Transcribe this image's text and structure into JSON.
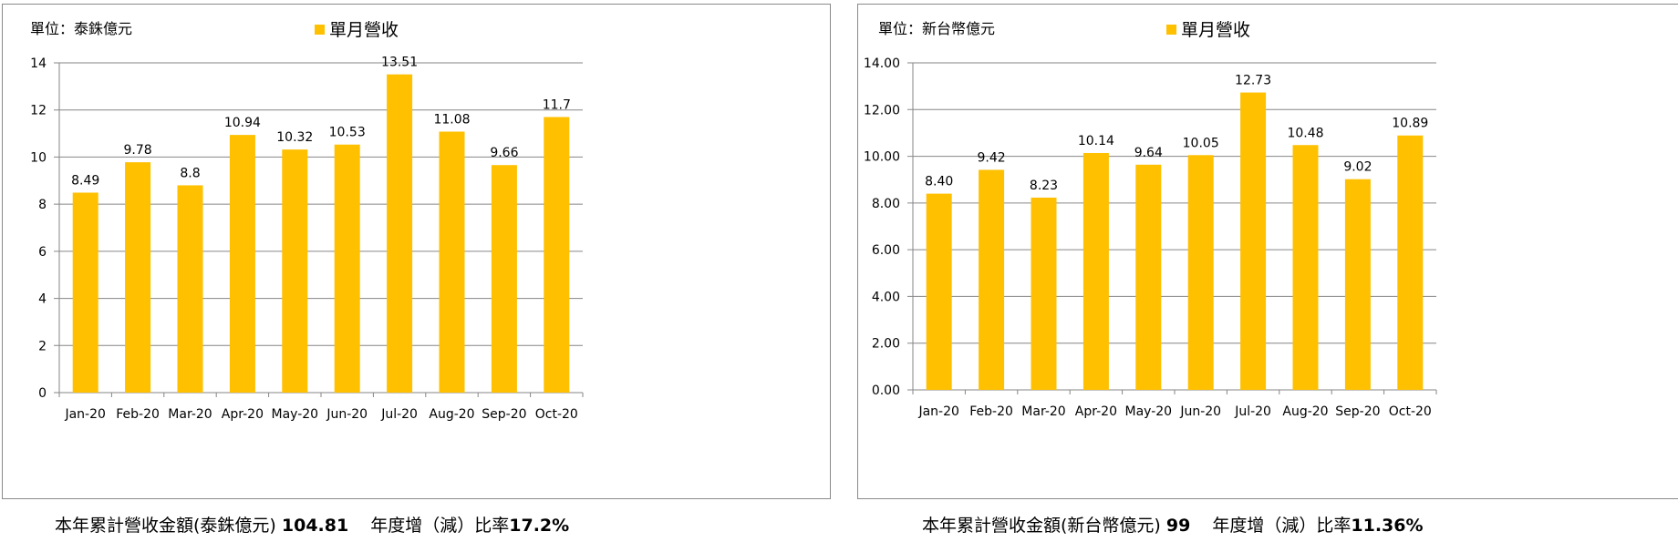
{
  "colors": {
    "bar": "#FFC000",
    "grid": "#868686",
    "frame": "#8a8a8a"
  },
  "chart_data": [
    {
      "type": "bar",
      "unit_label": "單位：泰銖億元",
      "legend": "單月營收",
      "legend_position": "top-center",
      "grid": true,
      "categories": [
        "Jan-20",
        "Feb-20",
        "Mar-20",
        "Apr-20",
        "May-20",
        "Jun-20",
        "Jul-20",
        "Aug-20",
        "Sep-20",
        "Oct-20"
      ],
      "values": [
        8.49,
        9.78,
        8.8,
        10.94,
        10.32,
        10.53,
        13.51,
        11.08,
        9.66,
        11.7
      ],
      "data_labels": [
        "8.49",
        "9.78",
        "8.8",
        "10.94",
        "10.32",
        "10.53",
        "13.51",
        "11.08",
        "9.66",
        "11.7"
      ],
      "ylim": [
        0,
        14
      ],
      "yticks": [
        0,
        2,
        4,
        6,
        8,
        10,
        12,
        14
      ],
      "ytick_labels": [
        "0",
        "2",
        "4",
        "6",
        "8",
        "10",
        "12",
        "14"
      ]
    },
    {
      "type": "bar",
      "unit_label": "單位：新台幣億元",
      "legend": "單月營收",
      "legend_position": "top-center",
      "grid": true,
      "categories": [
        "Jan-20",
        "Feb-20",
        "Mar-20",
        "Apr-20",
        "May-20",
        "Jun-20",
        "Jul-20",
        "Aug-20",
        "Sep-20",
        "Oct-20"
      ],
      "values": [
        8.4,
        9.42,
        8.23,
        10.14,
        9.64,
        10.05,
        12.73,
        10.48,
        9.02,
        10.89
      ],
      "data_labels": [
        "8.40",
        "9.42",
        "8.23",
        "10.14",
        "9.64",
        "10.05",
        "12.73",
        "10.48",
        "9.02",
        "10.89"
      ],
      "ylim": [
        0,
        14
      ],
      "yticks": [
        0,
        2,
        4,
        6,
        8,
        10,
        12,
        14
      ],
      "ytick_labels": [
        "0.00",
        "2.00",
        "4.00",
        "6.00",
        "8.00",
        "10.00",
        "12.00",
        "14.00"
      ]
    }
  ],
  "summaries": [
    {
      "prefix": "本年累計營收金額(泰銖億元)",
      "amount": "104.81",
      "growth_label": "年度增（減）比率",
      "growth": "17.2%"
    },
    {
      "prefix": "本年累計營收金額(新台幣億元)",
      "amount": "99",
      "growth_label": "年度增（減）比率",
      "growth": "11.36%"
    }
  ]
}
